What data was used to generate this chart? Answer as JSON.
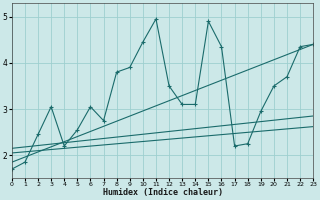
{
  "title": "",
  "xlabel": "Humidex (Indice chaleur)",
  "ylabel": "",
  "bg_color": "#cce8e8",
  "grid_color": "#9ecfcf",
  "line_color": "#1a6b6b",
  "xlim": [
    0,
    23
  ],
  "ylim": [
    1.5,
    5.3
  ],
  "yticks": [
    2,
    3,
    4,
    5
  ],
  "xticks": [
    0,
    1,
    2,
    3,
    4,
    5,
    6,
    7,
    8,
    9,
    10,
    11,
    12,
    13,
    14,
    15,
    16,
    17,
    18,
    19,
    20,
    21,
    22,
    23
  ],
  "series1_x": [
    0,
    1,
    2,
    3,
    4,
    5,
    6,
    7,
    8,
    9,
    10,
    11,
    12,
    13,
    14,
    15,
    16,
    17,
    18,
    19,
    20,
    21,
    22,
    23
  ],
  "series1_y": [
    1.7,
    1.85,
    2.45,
    3.05,
    2.2,
    2.55,
    3.05,
    2.75,
    3.8,
    3.9,
    4.45,
    4.95,
    3.5,
    3.1,
    3.1,
    4.9,
    4.35,
    2.2,
    2.25,
    2.95,
    3.5,
    3.7,
    4.35,
    4.4
  ],
  "series2_x": [
    0,
    23
  ],
  "series2_y": [
    1.85,
    4.4
  ],
  "series3_x": [
    0,
    23
  ],
  "series3_y": [
    2.15,
    2.85
  ],
  "series4_x": [
    0,
    23
  ],
  "series4_y": [
    2.05,
    2.62
  ]
}
